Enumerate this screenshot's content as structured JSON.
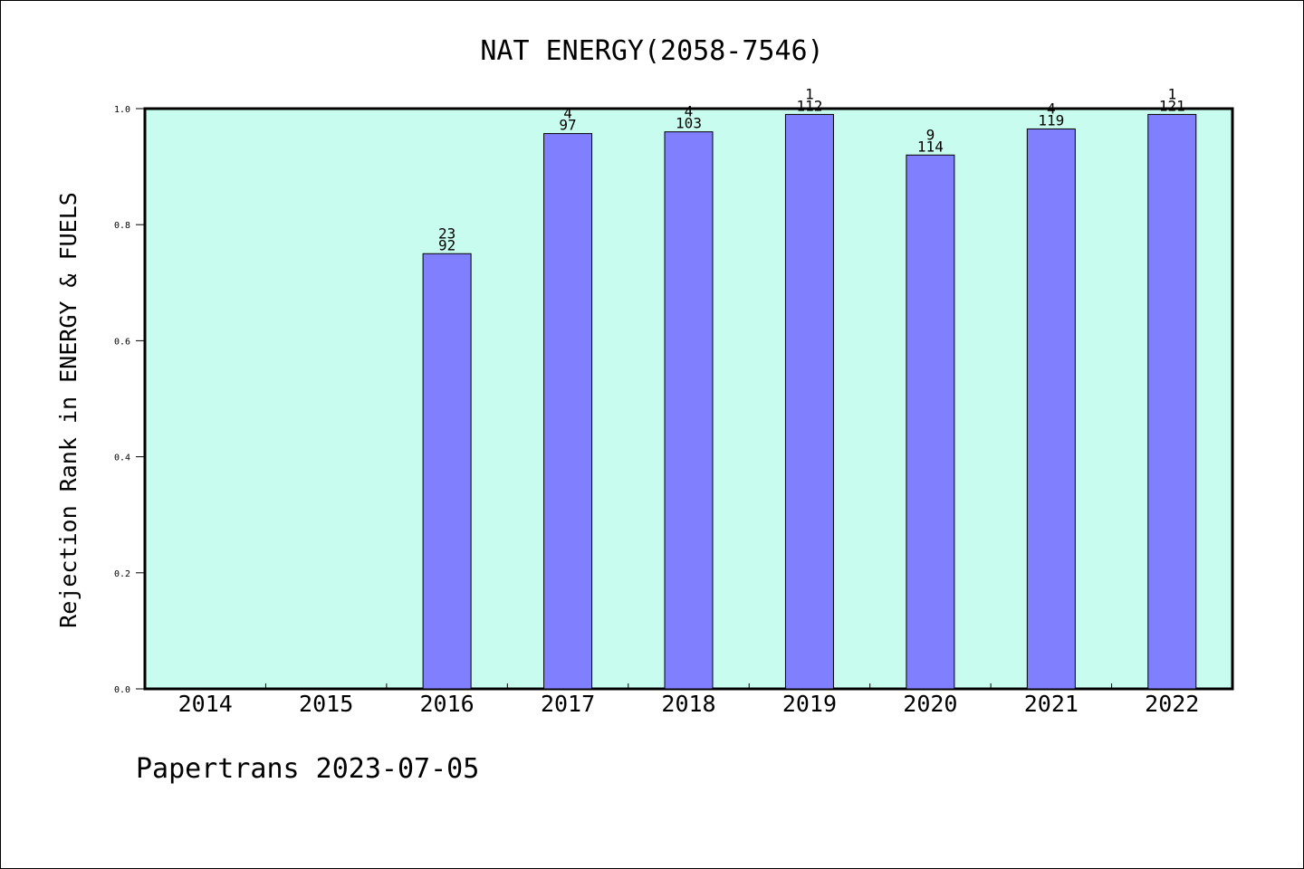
{
  "chart_data": {
    "type": "bar",
    "title": "NAT ENERGY(2058-7546)",
    "ylabel": "Rejection Rank in ENERGY & FUELS",
    "xlabel": "",
    "ylim": [
      0,
      1.0
    ],
    "yticks": [
      "0.0",
      "0.2",
      "0.4",
      "0.6",
      "0.8",
      "1.0"
    ],
    "categories": [
      "2014",
      "2015",
      "2016",
      "2017",
      "2018",
      "2019",
      "2020",
      "2021",
      "2022"
    ],
    "values": [
      null,
      null,
      0.75,
      0.957,
      0.96,
      0.99,
      0.92,
      0.965,
      0.99
    ],
    "rank_labels": [
      "",
      "",
      "23",
      "4",
      "4",
      "1",
      "9",
      "4",
      "1"
    ],
    "total_labels": [
      "",
      "",
      "92",
      "97",
      "103",
      "112",
      "114",
      "119",
      "121"
    ],
    "grid": false,
    "legend": "none",
    "colors": {
      "plot_background": "#c8fcee",
      "bar_fill": "#8080ff",
      "bar_stroke": "#000000",
      "axis": "#000000"
    }
  },
  "footer": {
    "text": "Papertrans 2023-07-05"
  }
}
